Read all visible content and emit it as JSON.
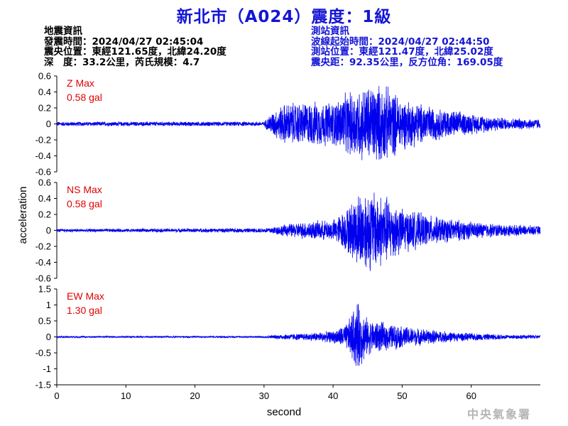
{
  "title": "新北市（A024）震度：1級",
  "earthquake_info": {
    "heading": "地震資訊",
    "lines": [
      "發震時間：2024/04/27 02:45:04",
      "震央位置：東經121.65度，北緯24.20度",
      "深　度：33.2公里，芮氏規模：4.7"
    ]
  },
  "station_info": {
    "heading": "測站資訊",
    "lines": [
      "波線起始時間：2024/04/27 02:44:50",
      "測站位置：東經121.47度，北緯25.02度",
      "震央距：92.35公里，反方位角：169.05度"
    ]
  },
  "agency": "中央氣象署",
  "colors": {
    "trace": "#0000ee",
    "label": "#e00000",
    "title": "#1515d6",
    "watermark": "#b4b4b4"
  },
  "chart_data": {
    "type": "line",
    "ylabel": "acceleration",
    "xlabel": "second",
    "xlim": [
      0,
      70
    ],
    "x_ticks": [
      "0",
      "10",
      "20",
      "30",
      "40",
      "50",
      "60"
    ],
    "panels": [
      {
        "name": "Z Max",
        "max_label": "0.58 gal",
        "ylim": [
          -0.6,
          0.6
        ],
        "y_ticks": [
          "0.6",
          "0.4",
          "0.2",
          "0",
          "-0.2",
          "-0.4",
          "-0.6"
        ],
        "envelope": [
          {
            "x": 0,
            "amp": 0.03
          },
          {
            "x": 30,
            "amp": 0.03
          },
          {
            "x": 31,
            "amp": 0.15
          },
          {
            "x": 33,
            "amp": 0.28
          },
          {
            "x": 36,
            "amp": 0.3
          },
          {
            "x": 40,
            "amp": 0.3
          },
          {
            "x": 42,
            "amp": 0.42
          },
          {
            "x": 44,
            "amp": 0.5
          },
          {
            "x": 46,
            "amp": 0.55
          },
          {
            "x": 48,
            "amp": 0.5
          },
          {
            "x": 50,
            "amp": 0.35
          },
          {
            "x": 55,
            "amp": 0.22
          },
          {
            "x": 60,
            "amp": 0.14
          },
          {
            "x": 65,
            "amp": 0.08
          },
          {
            "x": 70,
            "amp": 0.07
          }
        ]
      },
      {
        "name": "NS Max",
        "max_label": "0.58 gal",
        "ylim": [
          -0.6,
          0.6
        ],
        "y_ticks": [
          "0.6",
          "0.4",
          "0.2",
          "0",
          "-0.2",
          "-0.4",
          "-0.6"
        ],
        "envelope": [
          {
            "x": 0,
            "amp": 0.02
          },
          {
            "x": 30,
            "amp": 0.03
          },
          {
            "x": 33,
            "amp": 0.08
          },
          {
            "x": 36,
            "amp": 0.12
          },
          {
            "x": 40,
            "amp": 0.14
          },
          {
            "x": 42,
            "amp": 0.3
          },
          {
            "x": 44,
            "amp": 0.55
          },
          {
            "x": 46,
            "amp": 0.55
          },
          {
            "x": 48,
            "amp": 0.45
          },
          {
            "x": 50,
            "amp": 0.3
          },
          {
            "x": 55,
            "amp": 0.18
          },
          {
            "x": 60,
            "amp": 0.12
          },
          {
            "x": 65,
            "amp": 0.08
          },
          {
            "x": 70,
            "amp": 0.06
          }
        ]
      },
      {
        "name": "EW Max",
        "max_label": "1.30 gal",
        "ylim": [
          -1.5,
          1.5
        ],
        "y_ticks": [
          "1.5",
          "1",
          "0.5",
          "0",
          "-0.5",
          "-1",
          "-1.5"
        ],
        "envelope": [
          {
            "x": 0,
            "amp": 0.03
          },
          {
            "x": 30,
            "amp": 0.03
          },
          {
            "x": 33,
            "amp": 0.1
          },
          {
            "x": 36,
            "amp": 0.12
          },
          {
            "x": 40,
            "amp": 0.2
          },
          {
            "x": 42,
            "amp": 0.45
          },
          {
            "x": 43.5,
            "amp": 1.2
          },
          {
            "x": 45,
            "amp": 0.6
          },
          {
            "x": 48,
            "amp": 0.45
          },
          {
            "x": 52,
            "amp": 0.3
          },
          {
            "x": 58,
            "amp": 0.15
          },
          {
            "x": 65,
            "amp": 0.08
          },
          {
            "x": 70,
            "amp": 0.06
          }
        ]
      }
    ]
  }
}
